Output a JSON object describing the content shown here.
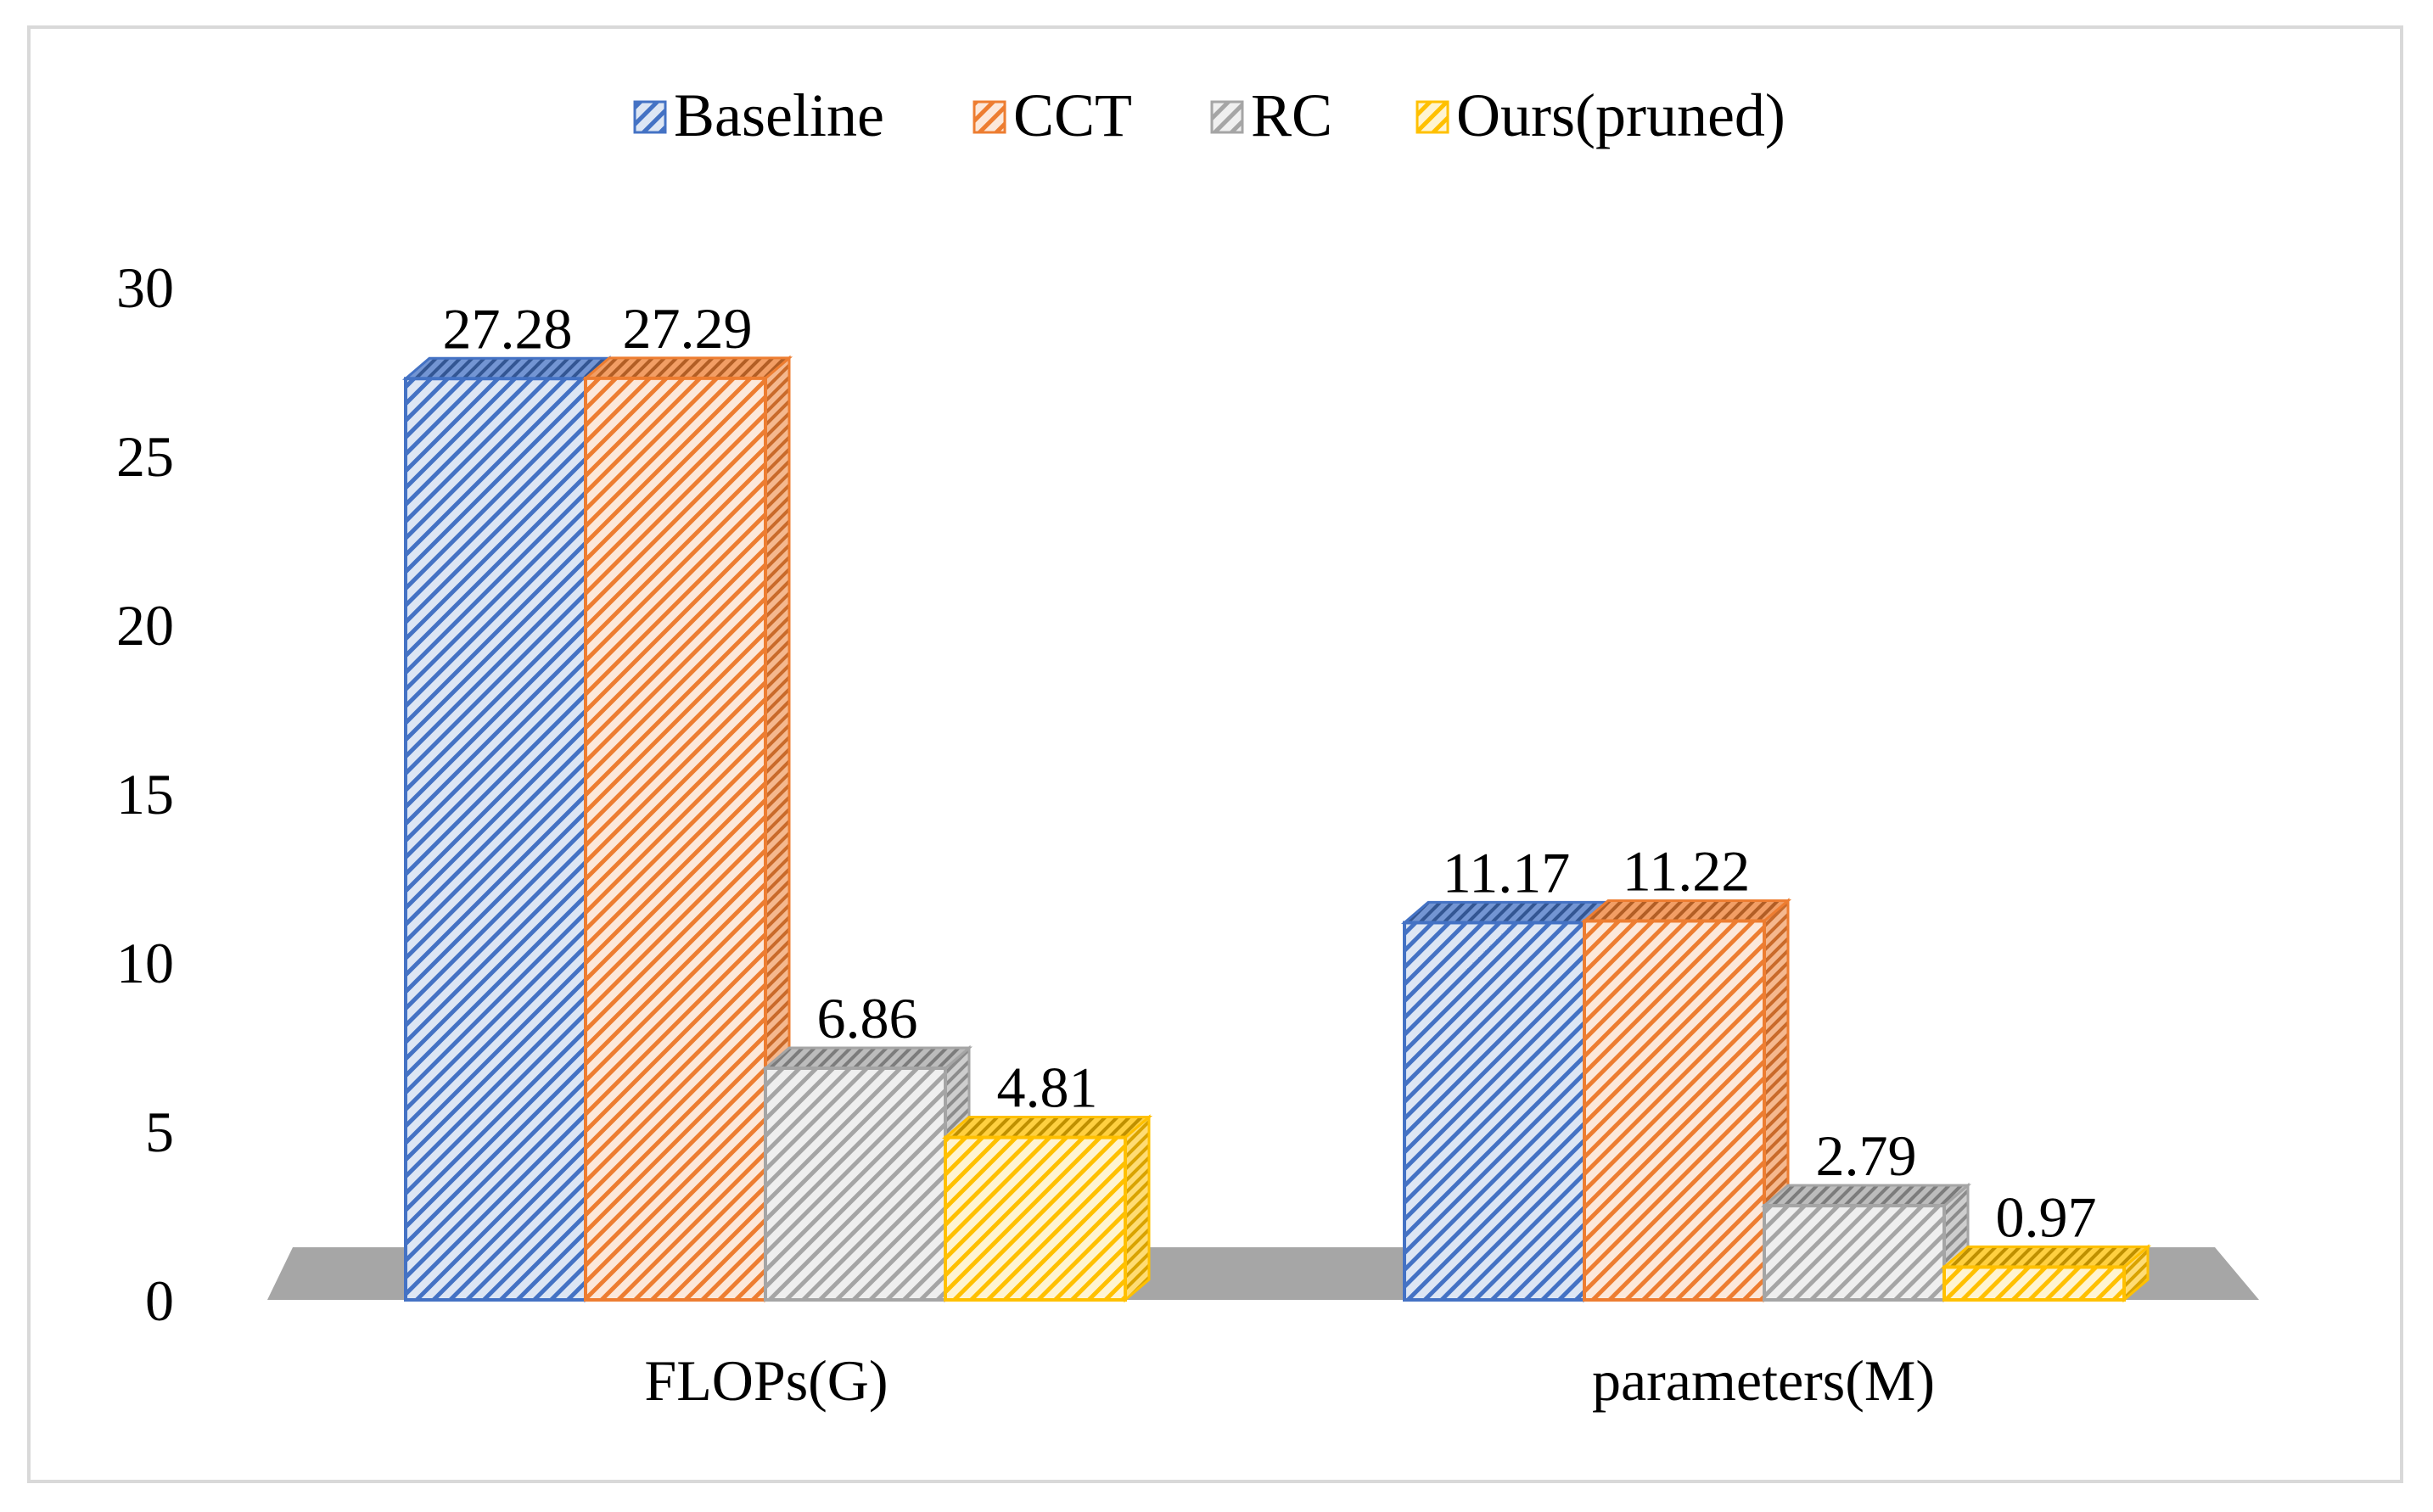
{
  "chart_data": {
    "type": "bar",
    "style": "3d-clustered-hatched",
    "title": "",
    "xlabel": "",
    "ylabel": "",
    "ylim": [
      0,
      30
    ],
    "yticks": [
      0,
      5,
      10,
      15,
      20,
      25,
      30
    ],
    "grid": false,
    "legend_position": "top",
    "categories": [
      "FLOPs(G)",
      "parameters(M)"
    ],
    "series": [
      {
        "name": "Baseline",
        "color": "#4472c4",
        "values": [
          27.28,
          11.17
        ]
      },
      {
        "name": "CCT",
        "color": "#ed7d31",
        "values": [
          27.29,
          11.22
        ]
      },
      {
        "name": "RC",
        "color": "#a5a5a5",
        "values": [
          6.86,
          2.79
        ]
      },
      {
        "name": "Ours(pruned)",
        "color": "#ffc000",
        "values": [
          4.81,
          0.97
        ]
      }
    ],
    "data_labels": [
      [
        "27.28",
        "11.17"
      ],
      [
        "27.29",
        "11.22"
      ],
      [
        "6.86",
        "2.79"
      ],
      [
        "4.81",
        "0.97"
      ]
    ]
  }
}
